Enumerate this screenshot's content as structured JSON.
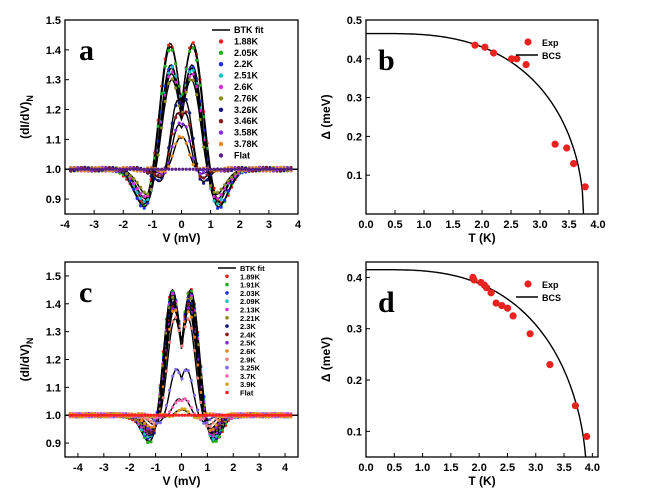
{
  "chart_data": [
    {
      "id": "a",
      "type": "line",
      "panel_label": "a",
      "xlabel": "V (mV)",
      "ylabel": "(dI/dV)",
      "ylabel_sub": "N",
      "xlim": [
        -4,
        4
      ],
      "ylim": [
        0.85,
        1.5
      ],
      "xticks": [
        -4,
        -3,
        -2,
        -1,
        0,
        1,
        2,
        3,
        4
      ],
      "yticks": [
        0.9,
        1.0,
        1.1,
        1.2,
        1.3,
        1.4,
        1.5
      ],
      "legend_position": "top-right",
      "fit_label": "BTK fit",
      "series": [
        {
          "name": "1.88K",
          "color": "#e8221f",
          "peak": 1.43,
          "dip": 0.91,
          "delta": 0.44
        },
        {
          "name": "2.05K",
          "color": "#1fb21f",
          "peak": 1.42,
          "dip": 0.905,
          "delta": 0.43
        },
        {
          "name": "2.2K",
          "color": "#1f2ee8",
          "peak": 1.36,
          "dip": 0.9,
          "delta": 0.42
        },
        {
          "name": "2.51K",
          "color": "#19c3c3",
          "peak": 1.35,
          "dip": 0.91,
          "delta": 0.4
        },
        {
          "name": "2.6K",
          "color": "#d62fd6",
          "peak": 1.33,
          "dip": 0.92,
          "delta": 0.4
        },
        {
          "name": "2.76K",
          "color": "#8c8c1a",
          "peak": 1.31,
          "dip": 0.93,
          "delta": 0.385
        },
        {
          "name": "3.26K",
          "color": "#16167a",
          "peak": 1.27,
          "dip": 0.94,
          "delta": 0.18
        },
        {
          "name": "3.46K",
          "color": "#8b1a1a",
          "peak": 1.22,
          "dip": 0.955,
          "delta": 0.17
        },
        {
          "name": "3.58K",
          "color": "#8a2be2",
          "peak": 1.18,
          "dip": 0.965,
          "delta": 0.13
        },
        {
          "name": "3.78K",
          "color": "#e8891f",
          "peak": 1.13,
          "dip": 0.98,
          "delta": 0.07
        },
        {
          "name": "Flat",
          "color": "#5a1f8a",
          "peak": 1.0,
          "dip": 1.0,
          "delta": 0.0
        }
      ]
    },
    {
      "id": "b",
      "type": "scatter",
      "panel_label": "b",
      "xlabel": "T (K)",
      "ylabel": "Δ (meV)",
      "xlim": [
        0,
        4
      ],
      "ylim": [
        0,
        0.5
      ],
      "xticks": [
        0.0,
        0.5,
        1.0,
        1.5,
        2.0,
        2.5,
        3.0,
        3.5,
        4.0
      ],
      "yticks": [
        0.1,
        0.2,
        0.3,
        0.4,
        0.5
      ],
      "legend": [
        "Exp",
        "BCS"
      ],
      "bcs": {
        "delta0": 0.465,
        "tc": 3.75
      },
      "points": [
        {
          "T": 1.88,
          "D": 0.435
        },
        {
          "T": 2.05,
          "D": 0.43
        },
        {
          "T": 2.2,
          "D": 0.415
        },
        {
          "T": 2.51,
          "D": 0.4
        },
        {
          "T": 2.6,
          "D": 0.4
        },
        {
          "T": 2.76,
          "D": 0.385
        },
        {
          "T": 3.26,
          "D": 0.18
        },
        {
          "T": 3.46,
          "D": 0.17
        },
        {
          "T": 3.58,
          "D": 0.13
        },
        {
          "T": 3.78,
          "D": 0.07
        }
      ]
    },
    {
      "id": "c",
      "type": "line",
      "panel_label": "c",
      "xlabel": "V (mV)",
      "ylabel": "(dI/dV)",
      "ylabel_sub": "N",
      "xlim": [
        -4.5,
        4.5
      ],
      "ylim": [
        0.85,
        1.55
      ],
      "xticks": [
        -4,
        -3,
        -2,
        -1,
        0,
        1,
        2,
        3,
        4
      ],
      "yticks": [
        0.9,
        1.0,
        1.1,
        1.2,
        1.3,
        1.4,
        1.5
      ],
      "legend_position": "top-right",
      "fit_label": "BTK fit",
      "series": [
        {
          "name": "1.89K",
          "color": "#e8221f",
          "peak": 1.46,
          "dip": 0.92,
          "delta": 0.4
        },
        {
          "name": "1.91K",
          "color": "#1fb21f",
          "peak": 1.46,
          "dip": 0.92,
          "delta": 0.395
        },
        {
          "name": "2.03K",
          "color": "#1f2ee8",
          "peak": 1.45,
          "dip": 0.93,
          "delta": 0.39
        },
        {
          "name": "2.09K",
          "color": "#19c3c3",
          "peak": 1.44,
          "dip": 0.93,
          "delta": 0.385
        },
        {
          "name": "2.13K",
          "color": "#d62fd6",
          "peak": 1.44,
          "dip": 0.935,
          "delta": 0.38
        },
        {
          "name": "2.21K",
          "color": "#8c8c1a",
          "peak": 1.43,
          "dip": 0.94,
          "delta": 0.37
        },
        {
          "name": "2.3K",
          "color": "#16167a",
          "peak": 1.42,
          "dip": 0.94,
          "delta": 0.35
        },
        {
          "name": "2.4K",
          "color": "#8b1a1a",
          "peak": 1.41,
          "dip": 0.945,
          "delta": 0.345
        },
        {
          "name": "2.5K",
          "color": "#8a2be2",
          "peak": 1.4,
          "dip": 0.95,
          "delta": 0.34
        },
        {
          "name": "2.6K",
          "color": "#e8891f",
          "peak": 1.39,
          "dip": 0.95,
          "delta": 0.325
        },
        {
          "name": "2.9K",
          "color": "#f08080",
          "peak": 1.36,
          "dip": 0.96,
          "delta": 0.29
        },
        {
          "name": "3.25K",
          "color": "#7b68ee",
          "peak": 1.18,
          "dip": 0.97,
          "delta": 0.23
        },
        {
          "name": "3.7K",
          "color": "#ff69b4",
          "peak": 1.07,
          "dip": 0.985,
          "delta": 0.15
        },
        {
          "name": "3.9K",
          "color": "#daa520",
          "peak": 1.03,
          "dip": 0.99,
          "delta": 0.09
        },
        {
          "name": "Flat",
          "color": "#ff2020",
          "peak": 1.0,
          "dip": 1.0,
          "delta": 0.0
        }
      ]
    },
    {
      "id": "d",
      "type": "scatter",
      "panel_label": "d",
      "xlabel": "T (K)",
      "ylabel": "Δ (meV)",
      "xlim": [
        0,
        4.1
      ],
      "ylim": [
        0.05,
        0.43
      ],
      "xticks": [
        0.0,
        0.5,
        1.0,
        1.5,
        2.0,
        2.5,
        3.0,
        3.5,
        4.0
      ],
      "yticks": [
        0.1,
        0.2,
        0.3,
        0.4
      ],
      "legend": [
        "Exp",
        "BCS"
      ],
      "bcs": {
        "delta0": 0.415,
        "tc": 3.9
      },
      "points": [
        {
          "T": 1.89,
          "D": 0.4
        },
        {
          "T": 1.91,
          "D": 0.395
        },
        {
          "T": 2.03,
          "D": 0.39
        },
        {
          "T": 2.09,
          "D": 0.385
        },
        {
          "T": 2.13,
          "D": 0.38
        },
        {
          "T": 2.21,
          "D": 0.37
        },
        {
          "T": 2.3,
          "D": 0.35
        },
        {
          "T": 2.4,
          "D": 0.345
        },
        {
          "T": 2.5,
          "D": 0.34
        },
        {
          "T": 2.6,
          "D": 0.325
        },
        {
          "T": 2.9,
          "D": 0.29
        },
        {
          "T": 3.25,
          "D": 0.23
        },
        {
          "T": 3.7,
          "D": 0.15
        },
        {
          "T": 3.9,
          "D": 0.09
        }
      ]
    }
  ]
}
